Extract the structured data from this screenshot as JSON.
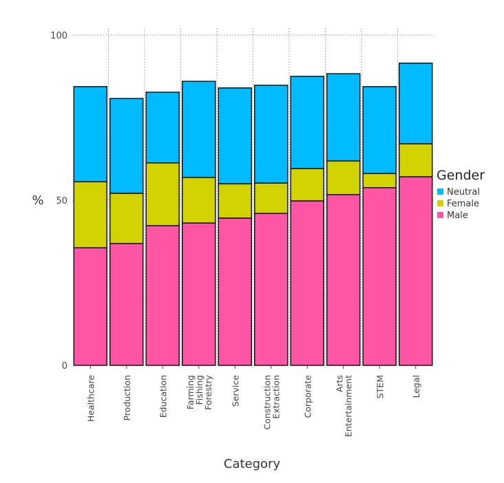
{
  "chart_data": {
    "type": "bar",
    "stacked": true,
    "title": "",
    "xlabel": "Category",
    "ylabel": "%",
    "ylim": [
      0,
      100
    ],
    "yticks": [
      0,
      50,
      100
    ],
    "grid": true,
    "legend": {
      "title": "Gender",
      "placement": "right"
    },
    "categories": [
      [
        "Healthcare"
      ],
      [
        "Production"
      ],
      [
        "Education"
      ],
      [
        "Farming",
        "Fishing",
        "Forestry"
      ],
      [
        "Service"
      ],
      [
        "Construction",
        "Extraction"
      ],
      [
        "Corporate"
      ],
      [
        "Arts",
        "Entertainment"
      ],
      [
        "STEM"
      ],
      [
        "Legal"
      ]
    ],
    "series": [
      {
        "name": "Male",
        "color": "#ff55a5",
        "values": [
          35.6,
          36.9,
          42.3,
          43.1,
          44.6,
          46.0,
          49.8,
          51.7,
          53.8,
          57.1
        ]
      },
      {
        "name": "Female",
        "color": "#d2d200",
        "values": [
          20.0,
          15.2,
          19.0,
          13.8,
          10.4,
          9.2,
          9.8,
          10.2,
          4.3,
          10.0
        ]
      },
      {
        "name": "Neutral",
        "color": "#00bbff",
        "values": [
          28.8,
          28.7,
          21.4,
          29.1,
          29.0,
          29.6,
          27.9,
          26.4,
          26.3,
          24.4
        ]
      }
    ],
    "legend_order": [
      "Neutral",
      "Female",
      "Male"
    ]
  }
}
